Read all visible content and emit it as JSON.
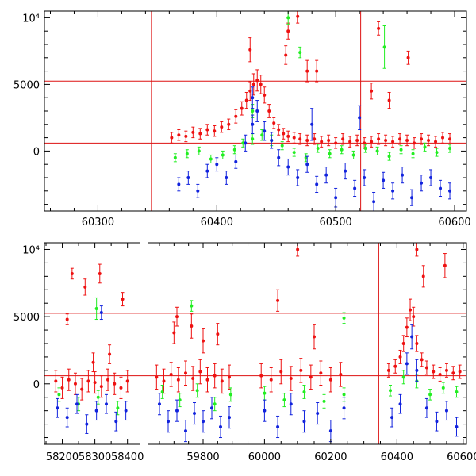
{
  "colors": {
    "red": "#ee1111",
    "green": "#22ee22",
    "blue": "#1122dd",
    "frame": "#000000",
    "refline": "#dd1111"
  },
  "chart_data": [
    {
      "type": "scatter",
      "panel": "top",
      "title": "",
      "xlabel": "",
      "ylabel": "",
      "xlim": [
        60255,
        60610
      ],
      "ylim": [
        -4500,
        10500
      ],
      "xticks": [
        60300,
        60400,
        60500,
        60600
      ],
      "xtick_labels": [
        "60300",
        "60400",
        "60500",
        "60600"
      ],
      "yticks": [
        0,
        5000,
        10000
      ],
      "ytick_labels": [
        "0",
        "5000",
        "10⁴"
      ],
      "hlines": [
        600,
        5250
      ],
      "vlines": [
        60345,
        60521
      ],
      "grid": false,
      "series": [
        {
          "name": "red",
          "x": [
            60362,
            60368,
            60374,
            60380,
            60386,
            60392,
            60398,
            60404,
            60410,
            60416,
            60421,
            60425,
            60428,
            60431,
            60434,
            60437,
            60440,
            60444,
            60448,
            60452,
            60456,
            60460,
            60465,
            60470,
            60476,
            60482,
            60488,
            60494,
            60500,
            60506,
            60512,
            60518,
            60524,
            60530,
            60536,
            60542,
            60548,
            60554,
            60560,
            60566,
            60572,
            60578,
            60584,
            60590,
            60596,
            60460,
            60468,
            60476,
            60484,
            60536,
            60561,
            60428,
            60458,
            60530,
            60545
          ],
          "y": [
            1000,
            1200,
            1100,
            1400,
            1300,
            1600,
            1500,
            1800,
            2000,
            2600,
            3200,
            3800,
            4500,
            5000,
            5300,
            5000,
            4200,
            3000,
            2100,
            1600,
            1300,
            1100,
            1000,
            900,
            800,
            900,
            700,
            800,
            600,
            900,
            700,
            800,
            600,
            700,
            900,
            800,
            700,
            900,
            800,
            600,
            900,
            800,
            700,
            1000,
            900,
            9000,
            10100,
            6000,
            6000,
            9200,
            7000,
            7600,
            7200,
            4500,
            3800
          ],
          "err": [
            400,
            400,
            400,
            400,
            400,
            400,
            400,
            400,
            400,
            500,
            500,
            600,
            700,
            800,
            800,
            700,
            600,
            500,
            400,
            400,
            400,
            400,
            400,
            400,
            400,
            400,
            400,
            400,
            400,
            400,
            400,
            400,
            400,
            400,
            400,
            400,
            400,
            400,
            400,
            400,
            400,
            400,
            400,
            400,
            400,
            600,
            500,
            800,
            800,
            500,
            500,
            900,
            700,
            600,
            600
          ]
        },
        {
          "name": "green",
          "x": [
            60365,
            60375,
            60385,
            60395,
            60405,
            60415,
            60422,
            60430,
            60438,
            60446,
            60455,
            60465,
            60475,
            60485,
            60495,
            60505,
            60515,
            60525,
            60535,
            60545,
            60555,
            60565,
            60575,
            60585,
            60596,
            60470,
            60541,
            60460,
            60430
          ],
          "y": [
            -500,
            -200,
            0,
            -600,
            -300,
            100,
            600,
            900,
            1200,
            800,
            400,
            -100,
            -500,
            200,
            -200,
            100,
            -300,
            200,
            0,
            -400,
            100,
            -200,
            300,
            -100,
            200,
            7400,
            7800,
            10000,
            3000
          ],
          "err": [
            300,
            300,
            300,
            300,
            300,
            300,
            300,
            400,
            400,
            400,
            300,
            300,
            300,
            300,
            300,
            300,
            300,
            300,
            300,
            300,
            300,
            300,
            300,
            300,
            300,
            400,
            1600,
            500,
            500
          ]
        },
        {
          "name": "blue",
          "x": [
            60368,
            60376,
            60384,
            60392,
            60400,
            60408,
            60416,
            60424,
            60430,
            60434,
            60440,
            60446,
            60452,
            60460,
            60468,
            60476,
            60484,
            60492,
            60500,
            60508,
            60516,
            60524,
            60532,
            60540,
            60548,
            60556,
            60564,
            60572,
            60580,
            60588,
            60596,
            60430,
            60480,
            60520
          ],
          "y": [
            -2500,
            -2000,
            -3000,
            -1500,
            -1000,
            -2000,
            -800,
            600,
            2000,
            3000,
            1500,
            800,
            -500,
            -1200,
            -2000,
            -1000,
            -2500,
            -1800,
            -3500,
            -1500,
            -2800,
            -2000,
            -3800,
            -2200,
            -3000,
            -1800,
            -3500,
            -2400,
            -2000,
            -2800,
            -3000,
            4000,
            2000,
            2500
          ],
          "err": [
            500,
            500,
            500,
            500,
            500,
            500,
            500,
            600,
            700,
            800,
            700,
            600,
            600,
            600,
            600,
            600,
            600,
            600,
            700,
            600,
            600,
            600,
            700,
            600,
            600,
            600,
            600,
            600,
            600,
            600,
            600,
            800,
            1200,
            900
          ]
        }
      ]
    },
    {
      "type": "scatter",
      "panel": "bottom",
      "title": "",
      "xlabel": "",
      "ylabel": "",
      "ylim": [
        -4500,
        10500
      ],
      "yticks": [
        0,
        5000,
        10000
      ],
      "ytick_labels": [
        "0",
        "5000",
        "10⁴"
      ],
      "hlines": [
        600,
        5250
      ],
      "vlines": [
        60345
      ],
      "grid": false,
      "segments": [
        {
          "xlim": [
            58150,
            58430
          ],
          "xticks": [
            58200,
            58300,
            58400
          ],
          "xtick_labels": [
            "58200",
            "58300",
            "58400"
          ],
          "series": [
            {
              "name": "red",
              "x": [
                58180,
                58200,
                58220,
                58240,
                58260,
                58280,
                58300,
                58320,
                58340,
                58360,
                58380,
                58400,
                58230,
                58270,
                58315,
                58345,
                58385,
                58215,
                58295
              ],
              "y": [
                200,
                -300,
                300,
                0,
                -400,
                200,
                100,
                -200,
                300,
                0,
                -300,
                200,
                8200,
                7200,
                8200,
                2200,
                6300,
                4800,
                1600
              ],
              "err": [
                800,
                800,
                800,
                800,
                800,
                800,
                800,
                800,
                800,
                800,
                800,
                800,
                400,
                600,
                700,
                700,
                500,
                400,
                700
              ]
            },
            {
              "name": "green",
              "x": [
                58190,
                58250,
                58310,
                58370,
                58305
              ],
              "y": [
                -800,
                -1500,
                -1000,
                -1800,
                5600
              ],
              "err": [
                500,
                500,
                500,
                500,
                800
              ]
            },
            {
              "name": "blue",
              "x": [
                58185,
                58215,
                58245,
                58275,
                58305,
                58335,
                58365,
                58395,
                58320
              ],
              "y": [
                -1800,
                -2500,
                -1500,
                -3000,
                -2000,
                -1500,
                -2800,
                -2000,
                5300
              ],
              "err": [
                700,
                700,
                700,
                700,
                700,
                700,
                700,
                700,
                500
              ]
            }
          ]
        },
        {
          "xlim": [
            59620,
            59920
          ],
          "xticks": [
            59800
          ],
          "xtick_labels": [
            "59800"
          ],
          "series": [
            {
              "name": "red",
              "x": [
                59640,
                59665,
                59690,
                59715,
                59740,
                59765,
                59790,
                59815,
                59840,
                59865,
                59890,
                59700,
                59760,
                59800,
                59850,
                59710
              ],
              "y": [
                500,
                200,
                700,
                300,
                800,
                400,
                900,
                300,
                600,
                200,
                500,
                3800,
                4300,
                3200,
                3700,
                5000
              ],
              "err": [
                900,
                900,
                900,
                900,
                900,
                900,
                900,
                900,
                900,
                900,
                900,
                800,
                900,
                900,
                800,
                700
              ]
            },
            {
              "name": "green",
              "x": [
                59660,
                59720,
                59780,
                59840,
                59895,
                59760
              ],
              "y": [
                -600,
                -1200,
                -500,
                -1500,
                -800,
                5800
              ],
              "err": [
                500,
                500,
                500,
                500,
                500,
                400
              ]
            },
            {
              "name": "blue",
              "x": [
                59650,
                59680,
                59710,
                59740,
                59770,
                59800,
                59830,
                59860,
                59890
              ],
              "y": [
                -1500,
                -2800,
                -2000,
                -3500,
                -2200,
                -2800,
                -1800,
                -3200,
                -2500
              ],
              "err": [
                800,
                800,
                800,
                800,
                800,
                800,
                800,
                800,
                800
              ]
            }
          ]
        },
        {
          "xlim": [
            59920,
            60610
          ],
          "xticks": [
            60000,
            60200,
            60400,
            60600
          ],
          "xtick_labels": [
            "60000",
            "60200",
            "60400",
            "60600"
          ],
          "series": [
            {
              "name": "red",
              "x": [
                59990,
                60020,
                60050,
                60080,
                60110,
                60140,
                60170,
                60200,
                60230,
                60375,
                60395,
                60410,
                60420,
                60430,
                60440,
                60450,
                60460,
                60475,
                60490,
                60510,
                60530,
                60550,
                60570,
                60590,
                60100,
                60150,
                60040,
                60460,
                60480,
                60545
              ],
              "y": [
                600,
                300,
                900,
                400,
                1000,
                500,
                800,
                300,
                700,
                1000,
                1300,
                2000,
                3000,
                4200,
                5500,
                5000,
                3000,
                1800,
                1200,
                900,
                700,
                1000,
                800,
                900,
                10000,
                3500,
                6200,
                10000,
                8000,
                8800
              ],
              "err": [
                900,
                900,
                900,
                900,
                900,
                900,
                900,
                900,
                900,
                500,
                500,
                500,
                600,
                700,
                800,
                700,
                600,
                500,
                500,
                500,
                500,
                500,
                500,
                500,
                500,
                900,
                800,
                500,
                800,
                900
              ]
            },
            {
              "name": "green",
              "x": [
                60000,
                60060,
                60120,
                60180,
                60240,
                60380,
                60420,
                60460,
                60500,
                60540,
                60580,
                60240
              ],
              "y": [
                -700,
                -1200,
                -600,
                -1300,
                -800,
                -500,
                500,
                200,
                -800,
                -300,
                -600,
                4900
              ],
              "err": [
                500,
                500,
                500,
                500,
                500,
                400,
                500,
                500,
                400,
                400,
                400,
                400
              ]
            },
            {
              "name": "blue",
              "x": [
                60000,
                60040,
                60080,
                60120,
                60160,
                60200,
                60240,
                60385,
                60410,
                60430,
                60445,
                60460,
                60490,
                60520,
                60550,
                60580
              ],
              "y": [
                -2000,
                -3200,
                -1500,
                -2800,
                -2200,
                -3500,
                -1800,
                -2500,
                -1500,
                1500,
                3500,
                1000,
                -1800,
                -2800,
                -2000,
                -3200
              ],
              "err": [
                800,
                800,
                800,
                800,
                800,
                800,
                800,
                700,
                700,
                800,
                900,
                800,
                700,
                700,
                700,
                700
              ]
            }
          ]
        }
      ]
    }
  ]
}
